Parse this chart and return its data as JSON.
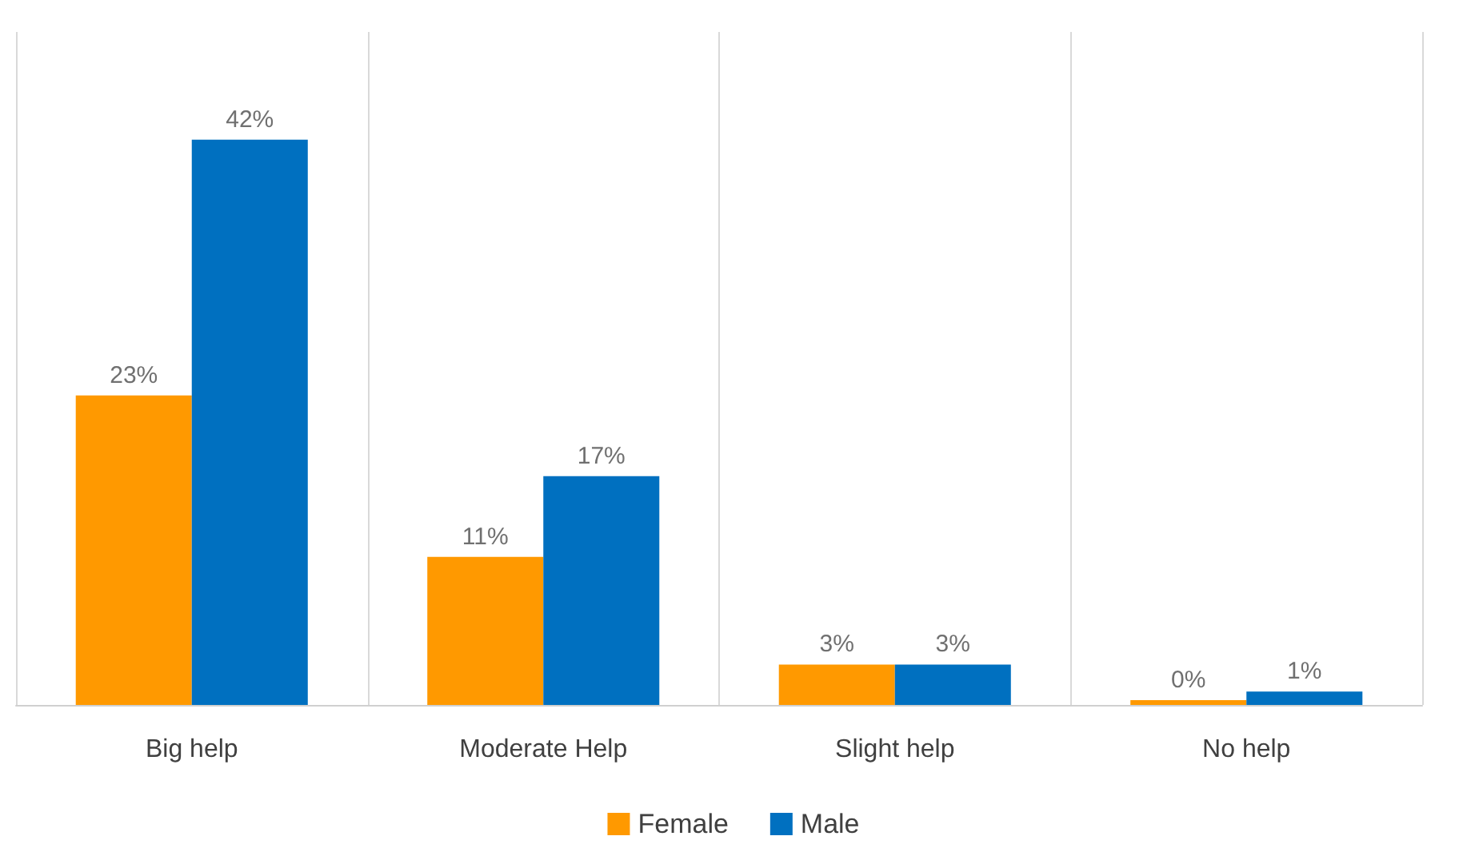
{
  "chart_data": {
    "type": "bar",
    "categories": [
      "Big help",
      "Moderate Help",
      "Slight help",
      "No help"
    ],
    "series": [
      {
        "name": "Female",
        "color": "#ff9900",
        "values": [
          23,
          11,
          3,
          0
        ],
        "value_labels": [
          "23%",
          "11%",
          "3%",
          "0%"
        ]
      },
      {
        "name": "Male",
        "color": "#0070c0",
        "values": [
          42,
          17,
          3,
          1
        ],
        "value_labels": [
          "42%",
          "17%",
          "3%",
          "1%"
        ]
      }
    ],
    "grid": "x",
    "legend": "bottom"
  }
}
